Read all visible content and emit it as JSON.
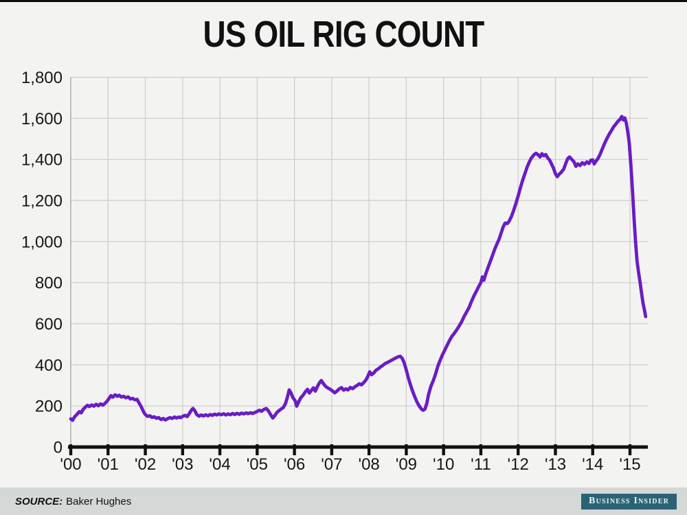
{
  "page": {
    "title": "US OIL RIG COUNT"
  },
  "footer": {
    "source_label": "SOURCE:",
    "source_value": "Baker Hughes",
    "brand": "Business Insider",
    "band_color": "#d4d8d6",
    "brand_bg": "#2a6375",
    "brand_text_color": "#eef3f2"
  },
  "chart_data": {
    "type": "line",
    "title": "US OIL RIG COUNT",
    "xlabel": "",
    "ylabel": "",
    "series_name": "US oil rig count (rigs)",
    "line_color": "#6a1cc4",
    "grid": true,
    "legend": "none",
    "xlim": [
      2000,
      2015.5
    ],
    "ylim": [
      0,
      1800
    ],
    "y_ticks": [
      {
        "v": 0,
        "label": "0"
      },
      {
        "v": 200,
        "label": "200"
      },
      {
        "v": 400,
        "label": "400"
      },
      {
        "v": 600,
        "label": "600"
      },
      {
        "v": 800,
        "label": "800"
      },
      {
        "v": 1000,
        "label": "1,000"
      },
      {
        "v": 1200,
        "label": "1,200"
      },
      {
        "v": 1400,
        "label": "1,400"
      },
      {
        "v": 1600,
        "label": "1,600"
      },
      {
        "v": 1800,
        "label": "1,800"
      }
    ],
    "x_ticks": [
      {
        "v": 2000,
        "label": "'00"
      },
      {
        "v": 2001,
        "label": "'01"
      },
      {
        "v": 2002,
        "label": "'02"
      },
      {
        "v": 2003,
        "label": "'03"
      },
      {
        "v": 2004,
        "label": "'04"
      },
      {
        "v": 2005,
        "label": "'05"
      },
      {
        "v": 2006,
        "label": "'06"
      },
      {
        "v": 2007,
        "label": "'07"
      },
      {
        "v": 2008,
        "label": "'08"
      },
      {
        "v": 2009,
        "label": "'09"
      },
      {
        "v": 2010,
        "label": "'10"
      },
      {
        "v": 2011,
        "label": "'11"
      },
      {
        "v": 2012,
        "label": "'12"
      },
      {
        "v": 2013,
        "label": "'13"
      },
      {
        "v": 2014,
        "label": "'14"
      },
      {
        "v": 2015,
        "label": "'15"
      }
    ],
    "points": [
      [
        2000.0,
        137
      ],
      [
        2000.05,
        130
      ],
      [
        2000.1,
        146
      ],
      [
        2000.17,
        160
      ],
      [
        2000.23,
        172
      ],
      [
        2000.28,
        166
      ],
      [
        2000.33,
        183
      ],
      [
        2000.4,
        196
      ],
      [
        2000.45,
        203
      ],
      [
        2000.5,
        197
      ],
      [
        2000.56,
        205
      ],
      [
        2000.62,
        199
      ],
      [
        2000.68,
        208
      ],
      [
        2000.74,
        201
      ],
      [
        2000.8,
        210
      ],
      [
        2000.86,
        204
      ],
      [
        2000.92,
        213
      ],
      [
        2000.97,
        222
      ],
      [
        2001.03,
        238
      ],
      [
        2001.08,
        250
      ],
      [
        2001.13,
        243
      ],
      [
        2001.19,
        254
      ],
      [
        2001.25,
        247
      ],
      [
        2001.3,
        252
      ],
      [
        2001.36,
        243
      ],
      [
        2001.42,
        247
      ],
      [
        2001.48,
        240
      ],
      [
        2001.54,
        244
      ],
      [
        2001.6,
        234
      ],
      [
        2001.66,
        237
      ],
      [
        2001.72,
        230
      ],
      [
        2001.78,
        232
      ],
      [
        2001.83,
        215
      ],
      [
        2001.89,
        196
      ],
      [
        2001.95,
        172
      ],
      [
        2002.0,
        158
      ],
      [
        2002.06,
        149
      ],
      [
        2002.12,
        152
      ],
      [
        2002.18,
        144
      ],
      [
        2002.24,
        147
      ],
      [
        2002.3,
        140
      ],
      [
        2002.36,
        143
      ],
      [
        2002.42,
        134
      ],
      [
        2002.48,
        139
      ],
      [
        2002.54,
        132
      ],
      [
        2002.6,
        138
      ],
      [
        2002.66,
        143
      ],
      [
        2002.72,
        139
      ],
      [
        2002.78,
        146
      ],
      [
        2002.84,
        141
      ],
      [
        2002.9,
        146
      ],
      [
        2002.95,
        143
      ],
      [
        2003.0,
        149
      ],
      [
        2003.06,
        154
      ],
      [
        2003.12,
        148
      ],
      [
        2003.18,
        163
      ],
      [
        2003.24,
        180
      ],
      [
        2003.28,
        188
      ],
      [
        2003.33,
        176
      ],
      [
        2003.38,
        158
      ],
      [
        2003.44,
        150
      ],
      [
        2003.5,
        156
      ],
      [
        2003.56,
        151
      ],
      [
        2003.62,
        157
      ],
      [
        2003.68,
        152
      ],
      [
        2003.74,
        158
      ],
      [
        2003.8,
        154
      ],
      [
        2003.86,
        160
      ],
      [
        2003.92,
        156
      ],
      [
        2003.97,
        161
      ],
      [
        2004.04,
        157
      ],
      [
        2004.1,
        162
      ],
      [
        2004.16,
        156
      ],
      [
        2004.22,
        161
      ],
      [
        2004.28,
        157
      ],
      [
        2004.34,
        163
      ],
      [
        2004.4,
        158
      ],
      [
        2004.46,
        164
      ],
      [
        2004.52,
        159
      ],
      [
        2004.58,
        165
      ],
      [
        2004.64,
        161
      ],
      [
        2004.7,
        166
      ],
      [
        2004.76,
        162
      ],
      [
        2004.82,
        167
      ],
      [
        2004.88,
        163
      ],
      [
        2004.94,
        168
      ],
      [
        2005.0,
        173
      ],
      [
        2005.06,
        179
      ],
      [
        2005.12,
        174
      ],
      [
        2005.18,
        183
      ],
      [
        2005.24,
        188
      ],
      [
        2005.3,
        176
      ],
      [
        2005.36,
        158
      ],
      [
        2005.42,
        141
      ],
      [
        2005.47,
        152
      ],
      [
        2005.53,
        168
      ],
      [
        2005.59,
        178
      ],
      [
        2005.65,
        186
      ],
      [
        2005.7,
        192
      ],
      [
        2005.76,
        212
      ],
      [
        2005.81,
        242
      ],
      [
        2005.86,
        278
      ],
      [
        2005.91,
        262
      ],
      [
        2005.96,
        240
      ],
      [
        2006.02,
        225
      ],
      [
        2006.06,
        199
      ],
      [
        2006.11,
        219
      ],
      [
        2006.17,
        240
      ],
      [
        2006.23,
        252
      ],
      [
        2006.29,
        268
      ],
      [
        2006.35,
        281
      ],
      [
        2006.4,
        263
      ],
      [
        2006.46,
        277
      ],
      [
        2006.51,
        288
      ],
      [
        2006.56,
        272
      ],
      [
        2006.62,
        296
      ],
      [
        2006.68,
        315
      ],
      [
        2006.72,
        324
      ],
      [
        2006.78,
        308
      ],
      [
        2006.84,
        294
      ],
      [
        2006.9,
        287
      ],
      [
        2006.96,
        281
      ],
      [
        2007.02,
        273
      ],
      [
        2007.08,
        264
      ],
      [
        2007.14,
        272
      ],
      [
        2007.2,
        283
      ],
      [
        2007.26,
        289
      ],
      [
        2007.32,
        277
      ],
      [
        2007.38,
        283
      ],
      [
        2007.44,
        278
      ],
      [
        2007.5,
        290
      ],
      [
        2007.56,
        284
      ],
      [
        2007.62,
        293
      ],
      [
        2007.68,
        300
      ],
      [
        2007.74,
        308
      ],
      [
        2007.8,
        303
      ],
      [
        2007.86,
        314
      ],
      [
        2007.92,
        327
      ],
      [
        2007.97,
        345
      ],
      [
        2008.02,
        366
      ],
      [
        2008.07,
        352
      ],
      [
        2008.13,
        361
      ],
      [
        2008.19,
        374
      ],
      [
        2008.25,
        381
      ],
      [
        2008.31,
        390
      ],
      [
        2008.37,
        397
      ],
      [
        2008.43,
        406
      ],
      [
        2008.49,
        411
      ],
      [
        2008.55,
        417
      ],
      [
        2008.61,
        423
      ],
      [
        2008.67,
        429
      ],
      [
        2008.73,
        435
      ],
      [
        2008.79,
        440
      ],
      [
        2008.84,
        442
      ],
      [
        2008.89,
        432
      ],
      [
        2008.94,
        412
      ],
      [
        2009.0,
        375
      ],
      [
        2009.05,
        340
      ],
      [
        2009.1,
        310
      ],
      [
        2009.16,
        276
      ],
      [
        2009.22,
        248
      ],
      [
        2009.28,
        222
      ],
      [
        2009.34,
        201
      ],
      [
        2009.4,
        186
      ],
      [
        2009.45,
        179
      ],
      [
        2009.5,
        184
      ],
      [
        2009.55,
        212
      ],
      [
        2009.6,
        258
      ],
      [
        2009.66,
        295
      ],
      [
        2009.72,
        322
      ],
      [
        2009.78,
        352
      ],
      [
        2009.84,
        390
      ],
      [
        2009.9,
        418
      ],
      [
        2009.96,
        445
      ],
      [
        2010.02,
        468
      ],
      [
        2010.08,
        490
      ],
      [
        2010.15,
        515
      ],
      [
        2010.22,
        538
      ],
      [
        2010.28,
        552
      ],
      [
        2010.35,
        570
      ],
      [
        2010.42,
        590
      ],
      [
        2010.48,
        608
      ],
      [
        2010.55,
        635
      ],
      [
        2010.62,
        658
      ],
      [
        2010.68,
        678
      ],
      [
        2010.75,
        710
      ],
      [
        2010.82,
        738
      ],
      [
        2010.89,
        762
      ],
      [
        2010.95,
        784
      ],
      [
        2011.0,
        800
      ],
      [
        2011.04,
        828
      ],
      [
        2011.08,
        812
      ],
      [
        2011.13,
        842
      ],
      [
        2011.19,
        872
      ],
      [
        2011.25,
        902
      ],
      [
        2011.31,
        932
      ],
      [
        2011.37,
        962
      ],
      [
        2011.43,
        988
      ],
      [
        2011.49,
        1012
      ],
      [
        2011.55,
        1045
      ],
      [
        2011.6,
        1072
      ],
      [
        2011.65,
        1090
      ],
      [
        2011.71,
        1088
      ],
      [
        2011.76,
        1100
      ],
      [
        2011.82,
        1122
      ],
      [
        2011.88,
        1152
      ],
      [
        2011.94,
        1185
      ],
      [
        2012.0,
        1222
      ],
      [
        2012.06,
        1262
      ],
      [
        2012.12,
        1298
      ],
      [
        2012.18,
        1330
      ],
      [
        2012.24,
        1362
      ],
      [
        2012.3,
        1388
      ],
      [
        2012.36,
        1408
      ],
      [
        2012.42,
        1422
      ],
      [
        2012.48,
        1430
      ],
      [
        2012.54,
        1422
      ],
      [
        2012.59,
        1412
      ],
      [
        2012.64,
        1428
      ],
      [
        2012.69,
        1418
      ],
      [
        2012.74,
        1424
      ],
      [
        2012.79,
        1408
      ],
      [
        2012.84,
        1398
      ],
      [
        2012.89,
        1380
      ],
      [
        2012.95,
        1356
      ],
      [
        2013.0,
        1330
      ],
      [
        2013.05,
        1316
      ],
      [
        2013.1,
        1328
      ],
      [
        2013.16,
        1338
      ],
      [
        2013.22,
        1352
      ],
      [
        2013.28,
        1382
      ],
      [
        2013.33,
        1404
      ],
      [
        2013.38,
        1412
      ],
      [
        2013.44,
        1400
      ],
      [
        2013.5,
        1388
      ],
      [
        2013.55,
        1366
      ],
      [
        2013.6,
        1378
      ],
      [
        2013.66,
        1370
      ],
      [
        2013.72,
        1384
      ],
      [
        2013.78,
        1376
      ],
      [
        2013.84,
        1388
      ],
      [
        2013.9,
        1380
      ],
      [
        2013.95,
        1396
      ],
      [
        2014.0,
        1398
      ],
      [
        2014.04,
        1378
      ],
      [
        2014.09,
        1392
      ],
      [
        2014.14,
        1404
      ],
      [
        2014.2,
        1426
      ],
      [
        2014.26,
        1452
      ],
      [
        2014.32,
        1478
      ],
      [
        2014.38,
        1502
      ],
      [
        2014.44,
        1522
      ],
      [
        2014.5,
        1540
      ],
      [
        2014.56,
        1558
      ],
      [
        2014.62,
        1572
      ],
      [
        2014.68,
        1586
      ],
      [
        2014.73,
        1594
      ],
      [
        2014.78,
        1609
      ],
      [
        2014.82,
        1592
      ],
      [
        2014.86,
        1602
      ],
      [
        2014.9,
        1578
      ],
      [
        2014.94,
        1536
      ],
      [
        2014.98,
        1482
      ],
      [
        2015.03,
        1358
      ],
      [
        2015.07,
        1240
      ],
      [
        2015.11,
        1110
      ],
      [
        2015.15,
        1000
      ],
      [
        2015.19,
        905
      ],
      [
        2015.23,
        850
      ],
      [
        2015.27,
        802
      ],
      [
        2015.31,
        750
      ],
      [
        2015.35,
        700
      ],
      [
        2015.39,
        665
      ],
      [
        2015.42,
        635
      ]
    ]
  }
}
